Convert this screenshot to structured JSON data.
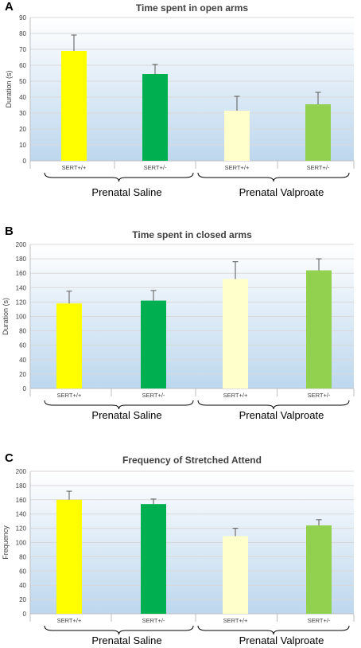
{
  "colors": {
    "sert_pp_saline": "#FFFF00",
    "sert_pm_saline": "#00B050",
    "sert_pp_valproate": "#FFFFCC",
    "sert_pm_valproate": "#92D050",
    "plot_bg_top": "#FFFFFF",
    "plot_bg_bottom": "#BDD7EE",
    "grid": "#D9D9D9"
  },
  "chart_data": [
    {
      "panel": "A",
      "type": "bar",
      "title": "Time spent in open arms",
      "ylabel": "Duration  (s)",
      "xlabel": "",
      "ylim": [
        0,
        90
      ],
      "yticks": [
        0,
        10,
        20,
        30,
        40,
        50,
        60,
        70,
        80,
        90
      ],
      "grid": true,
      "categories": [
        "SERT+/+",
        "SERT+/-",
        "SERT+/+",
        "SERT+/-"
      ],
      "groups": [
        {
          "label": "Prenatal Saline",
          "categories": [
            0,
            1
          ]
        },
        {
          "label": "Prenatal Valproate",
          "categories": [
            2,
            3
          ]
        }
      ],
      "values": [
        69,
        54.5,
        31.5,
        35.5
      ],
      "errors": [
        10,
        6,
        9,
        7.5
      ]
    },
    {
      "panel": "B",
      "type": "bar",
      "title": "Time spent in closed arms",
      "ylabel": "Duration (s)",
      "xlabel": "",
      "ylim": [
        0,
        200
      ],
      "yticks": [
        0,
        20,
        40,
        60,
        80,
        100,
        120,
        140,
        160,
        180,
        200
      ],
      "grid": true,
      "categories": [
        "SERT+/+",
        "SERT+/-",
        "SERT+/+",
        "SERT+/-"
      ],
      "groups": [
        {
          "label": "Prenatal Saline",
          "categories": [
            0,
            1
          ]
        },
        {
          "label": "Prenatal Valproate",
          "categories": [
            2,
            3
          ]
        }
      ],
      "values": [
        118,
        122,
        152,
        164
      ],
      "errors": [
        17,
        14,
        24,
        16
      ]
    },
    {
      "panel": "C",
      "type": "bar",
      "title": "Frequency of Stretched Attend",
      "ylabel": "Frequency",
      "xlabel": "",
      "ylim": [
        0,
        200
      ],
      "yticks": [
        0,
        20,
        40,
        60,
        80,
        100,
        120,
        140,
        160,
        180,
        200
      ],
      "grid": true,
      "categories": [
        "SERT+/+",
        "SERT+/-",
        "SERT+/+",
        "SERT+/-"
      ],
      "groups": [
        {
          "label": "Prenatal Saline",
          "categories": [
            0,
            1
          ]
        },
        {
          "label": "Prenatal Valproate",
          "categories": [
            2,
            3
          ]
        }
      ],
      "values": [
        160,
        154,
        109,
        124
      ],
      "errors": [
        12,
        7,
        11,
        8
      ]
    }
  ]
}
